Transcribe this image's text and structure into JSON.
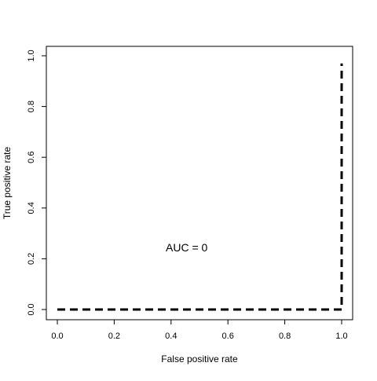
{
  "chart_data": {
    "type": "line",
    "title": "",
    "xlabel": "False positive rate",
    "ylabel": "True positive rate",
    "xlim": [
      0,
      1
    ],
    "ylim": [
      0,
      1
    ],
    "xticks": [
      0.0,
      0.2,
      0.4,
      0.6,
      0.8,
      1.0
    ],
    "yticks": [
      0.0,
      0.2,
      0.4,
      0.6,
      0.8,
      1.0
    ],
    "xtick_labels": [
      "0.0",
      "0.2",
      "0.4",
      "0.6",
      "0.8",
      "1.0"
    ],
    "ytick_labels": [
      "0.0",
      "0.2",
      "0.4",
      "0.6",
      "0.8",
      "1.0"
    ],
    "grid": false,
    "series": [
      {
        "x": [
          0.0,
          1.0,
          1.0
        ],
        "y": [
          0.0,
          0.0,
          0.97
        ],
        "line_style": "dashed",
        "color": "#000000"
      }
    ],
    "annotations": [
      {
        "text": "AUC = 0",
        "x": 0.455,
        "y": 0.24
      }
    ]
  }
}
